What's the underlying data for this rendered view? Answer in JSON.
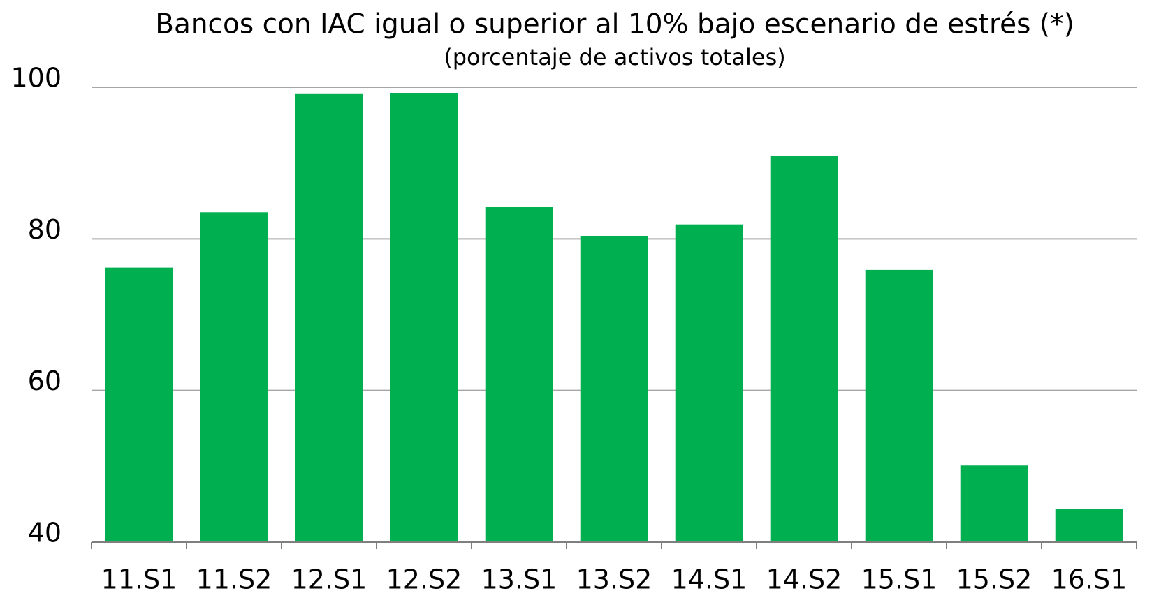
{
  "chart_data": {
    "type": "bar",
    "title": "Bancos con IAC igual o superior al 10% bajo escenario de estrés (*)",
    "subtitle": "(porcentaje de activos totales)",
    "categories": [
      "11.S1",
      "11.S2",
      "12.S1",
      "12.S2",
      "13.S1",
      "13.S2",
      "14.S1",
      "14.S2",
      "15.S1",
      "15.S2",
      "16.S1"
    ],
    "values": [
      76.2,
      83.5,
      99.1,
      99.2,
      84.2,
      80.4,
      81.9,
      90.9,
      75.9,
      50.1,
      44.4
    ],
    "color": "#00b050",
    "ylim": [
      40,
      100
    ],
    "yticks": [
      40,
      60,
      80,
      100
    ],
    "grid": true
  }
}
